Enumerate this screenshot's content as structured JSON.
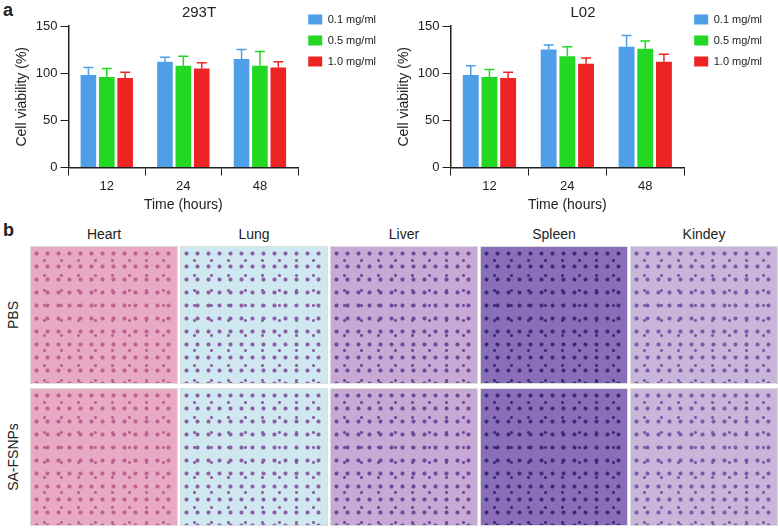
{
  "chart_data": [
    {
      "type": "bar",
      "title": "293T",
      "x_label": "Time (hours)",
      "y_label": "Cell viability (%)",
      "categories": [
        "12",
        "24",
        "48"
      ],
      "series": [
        {
          "name": "0.1 mg/ml",
          "color": "#4f9fe8",
          "values": [
            98,
            112,
            115
          ],
          "errors": [
            8,
            5,
            10
          ]
        },
        {
          "name": "0.5 mg/ml",
          "color": "#22d822",
          "values": [
            96,
            108,
            108
          ],
          "errors": [
            9,
            10,
            15
          ]
        },
        {
          "name": "1.0 mg/ml",
          "color": "#ee2424",
          "values": [
            95,
            105,
            106
          ],
          "errors": [
            6,
            6,
            6
          ]
        }
      ],
      "ylim": [
        0,
        150
      ],
      "yticks": [
        0,
        50,
        100,
        150
      ],
      "grid": false,
      "legend": "top-right"
    },
    {
      "type": "bar",
      "title": "L02",
      "x_label": "Time (hours)",
      "y_label": "Cell viability (%)",
      "categories": [
        "12",
        "24",
        "48"
      ],
      "series": [
        {
          "name": "0.1 mg/ml",
          "color": "#4f9fe8",
          "values": [
            98,
            125,
            128
          ],
          "errors": [
            10,
            5,
            12
          ]
        },
        {
          "name": "0.5 mg/ml",
          "color": "#22d822",
          "values": [
            96,
            118,
            126
          ],
          "errors": [
            8,
            10,
            8
          ]
        },
        {
          "name": "1.0 mg/ml",
          "color": "#ee2424",
          "values": [
            95,
            110,
            112
          ],
          "errors": [
            6,
            6,
            8
          ]
        }
      ],
      "ylim": [
        0,
        150
      ],
      "yticks": [
        0,
        50,
        100,
        150
      ],
      "grid": false,
      "legend": "top-right"
    }
  ],
  "panel_labels": [
    "a",
    "b"
  ],
  "histology": {
    "columns": [
      "Heart",
      "Lung",
      "Liver",
      "Spleen",
      "Kindey"
    ],
    "rows": [
      "PBS",
      "SA-FSNPs"
    ]
  }
}
